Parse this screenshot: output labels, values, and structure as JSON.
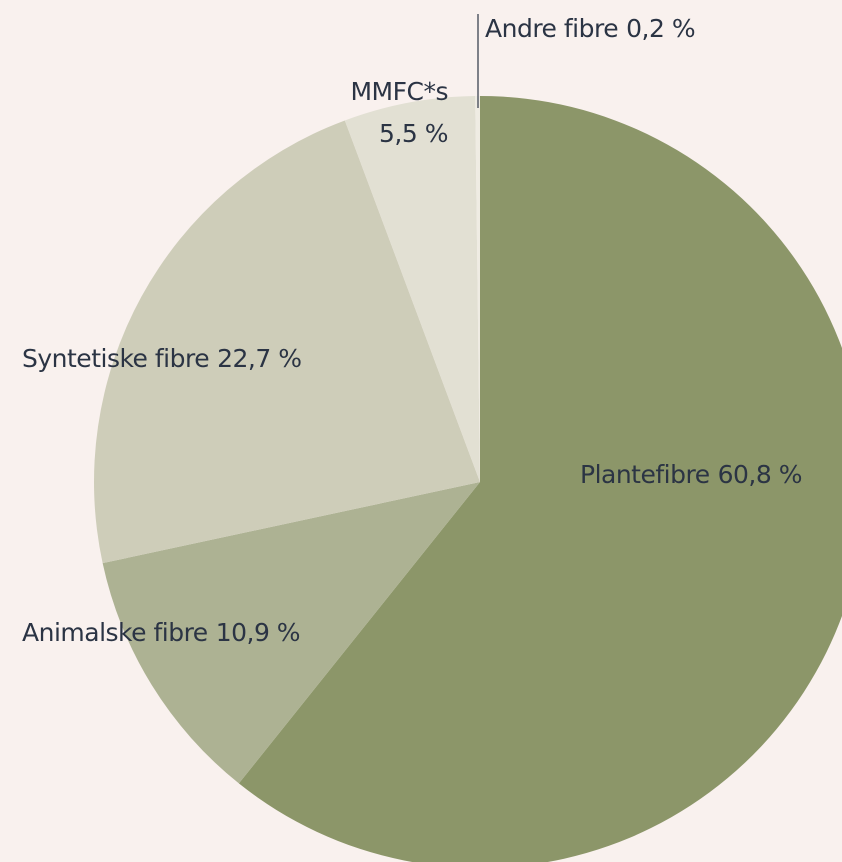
{
  "chart_data": {
    "type": "pie",
    "categories": [
      "Plantefibre",
      "Animalske fibre",
      "Syntetiske fibre",
      "MMFC*s",
      "Andre fibre"
    ],
    "values": [
      60.8,
      10.9,
      22.7,
      5.5,
      0.2
    ],
    "value_labels": [
      "60,8 %",
      "10,9 %",
      "22,7 %",
      "5,5 %",
      "0,2 %"
    ],
    "colors": [
      "#8c9669",
      "#adb293",
      "#cecdb9",
      "#e2e0d3",
      "#efece3"
    ]
  }
}
